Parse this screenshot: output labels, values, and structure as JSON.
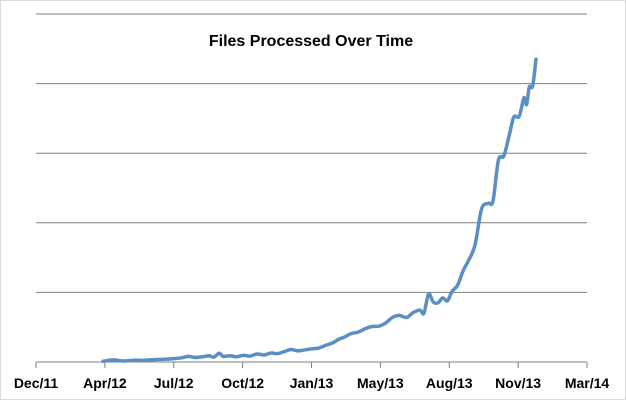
{
  "chart_data": {
    "type": "line",
    "title": "Files Processed Over Time",
    "xlabel": "",
    "ylabel": "",
    "x_ticks": [
      "Dec/11",
      "Apr/12",
      "Jul/12",
      "Oct/12",
      "Jan/13",
      "May/13",
      "Aug/13",
      "Nov/13",
      "Mar/14"
    ],
    "x_range": [
      "2011-12-01",
      "2014-03-01"
    ],
    "y_range": [
      0,
      100
    ],
    "y_gridlines": [
      20,
      40,
      60,
      80,
      100
    ],
    "y_tick_labels_visible": false,
    "grid": true,
    "legend": "none",
    "series": [
      {
        "color": "#5b8ec2",
        "points": [
          [
            "2012-03-10",
            0.2
          ],
          [
            "2012-03-25",
            0.6
          ],
          [
            "2012-04-10",
            0.3
          ],
          [
            "2012-04-25",
            0.5
          ],
          [
            "2012-05-10",
            0.5
          ],
          [
            "2012-05-25",
            0.7
          ],
          [
            "2012-06-10",
            0.8
          ],
          [
            "2012-06-25",
            1.0
          ],
          [
            "2012-07-05",
            1.2
          ],
          [
            "2012-07-15",
            1.6
          ],
          [
            "2012-07-25",
            1.3
          ],
          [
            "2012-08-05",
            1.5
          ],
          [
            "2012-08-15",
            1.8
          ],
          [
            "2012-08-22",
            1.4
          ],
          [
            "2012-08-30",
            2.5
          ],
          [
            "2012-09-05",
            1.6
          ],
          [
            "2012-09-15",
            1.8
          ],
          [
            "2012-09-25",
            1.5
          ],
          [
            "2012-10-05",
            1.9
          ],
          [
            "2012-10-15",
            1.7
          ],
          [
            "2012-10-25",
            2.3
          ],
          [
            "2012-11-05",
            2.0
          ],
          [
            "2012-11-15",
            2.6
          ],
          [
            "2012-11-25",
            2.4
          ],
          [
            "2012-12-05",
            3.0
          ],
          [
            "2012-12-15",
            3.6
          ],
          [
            "2012-12-25",
            3.2
          ],
          [
            "2013-01-05",
            3.5
          ],
          [
            "2013-01-15",
            3.8
          ],
          [
            "2013-01-25",
            4.0
          ],
          [
            "2013-02-05",
            4.8
          ],
          [
            "2013-02-15",
            5.5
          ],
          [
            "2013-02-25",
            6.6
          ],
          [
            "2013-03-05",
            7.2
          ],
          [
            "2013-03-15",
            8.2
          ],
          [
            "2013-03-25",
            8.6
          ],
          [
            "2013-04-05",
            9.6
          ],
          [
            "2013-04-15",
            10.2
          ],
          [
            "2013-04-25",
            10.3
          ],
          [
            "2013-05-05",
            11.2
          ],
          [
            "2013-05-15",
            12.8
          ],
          [
            "2013-05-25",
            13.4
          ],
          [
            "2013-06-05",
            12.8
          ],
          [
            "2013-06-15",
            14.2
          ],
          [
            "2013-06-25",
            14.9
          ],
          [
            "2013-07-01",
            14.0
          ],
          [
            "2013-07-08",
            19.5
          ],
          [
            "2013-07-15",
            17.2
          ],
          [
            "2013-07-22",
            17.0
          ],
          [
            "2013-07-29",
            18.4
          ],
          [
            "2013-08-05",
            17.6
          ],
          [
            "2013-08-12",
            20.3
          ],
          [
            "2013-08-20",
            22.0
          ],
          [
            "2013-08-28",
            26.0
          ],
          [
            "2013-09-05",
            29.0
          ],
          [
            "2013-09-15",
            33.5
          ],
          [
            "2013-09-25",
            44.0
          ],
          [
            "2013-10-05",
            45.6
          ],
          [
            "2013-10-12",
            46.3
          ],
          [
            "2013-10-20",
            58.0
          ],
          [
            "2013-10-28",
            59.2
          ],
          [
            "2013-11-05",
            65.0
          ],
          [
            "2013-11-12",
            70.4
          ],
          [
            "2013-11-20",
            70.6
          ],
          [
            "2013-11-27",
            75.9
          ],
          [
            "2013-12-01",
            74.0
          ],
          [
            "2013-12-05",
            79.0
          ],
          [
            "2013-12-10",
            79.3
          ],
          [
            "2013-12-15",
            87.0
          ]
        ]
      }
    ]
  }
}
